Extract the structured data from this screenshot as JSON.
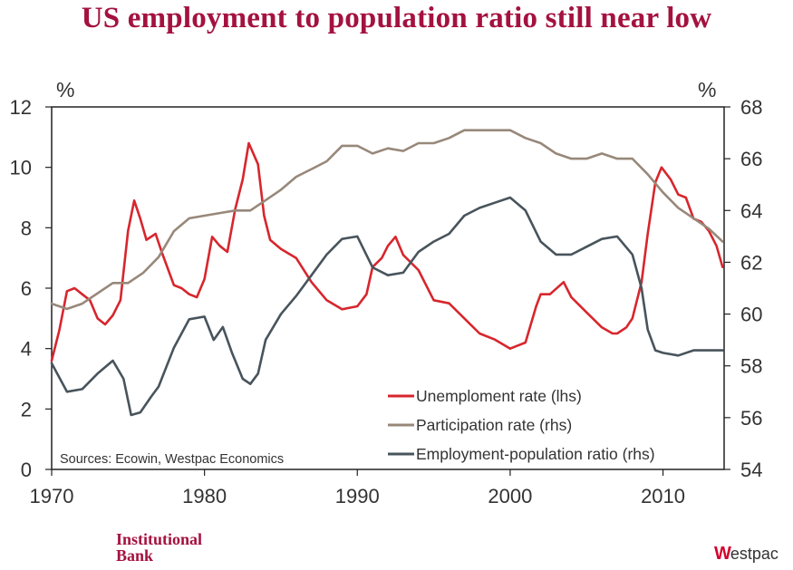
{
  "chart_data": {
    "type": "line",
    "title": "US employment to population ratio still near low",
    "left_unit": "%",
    "right_unit": "%",
    "x_range": [
      1970,
      2014
    ],
    "x_ticks": [
      1970,
      1980,
      1990,
      2000,
      2010
    ],
    "y_left_range": [
      0,
      12
    ],
    "y_left_ticks": [
      0,
      2,
      4,
      6,
      8,
      10,
      12
    ],
    "y_right_range": [
      54,
      68
    ],
    "y_right_ticks": [
      54,
      56,
      58,
      60,
      62,
      64,
      66,
      68
    ],
    "source_note": "Sources: Ecowin, Westpac Economics",
    "series": [
      {
        "name": "Unemploment rate (lhs)",
        "axis": "left",
        "color": "#d7262d",
        "points": [
          [
            1970.0,
            3.6
          ],
          [
            1970.5,
            4.6
          ],
          [
            1971.0,
            5.9
          ],
          [
            1971.5,
            6.0
          ],
          [
            1972.0,
            5.8
          ],
          [
            1972.5,
            5.6
          ],
          [
            1973.0,
            5.0
          ],
          [
            1973.5,
            4.8
          ],
          [
            1974.0,
            5.1
          ],
          [
            1974.5,
            5.6
          ],
          [
            1975.0,
            7.9
          ],
          [
            1975.4,
            8.9
          ],
          [
            1975.8,
            8.3
          ],
          [
            1976.2,
            7.6
          ],
          [
            1976.8,
            7.8
          ],
          [
            1977.2,
            7.2
          ],
          [
            1978.0,
            6.1
          ],
          [
            1978.5,
            6.0
          ],
          [
            1979.0,
            5.8
          ],
          [
            1979.5,
            5.7
          ],
          [
            1980.0,
            6.3
          ],
          [
            1980.5,
            7.7
          ],
          [
            1981.0,
            7.4
          ],
          [
            1981.5,
            7.2
          ],
          [
            1982.0,
            8.6
          ],
          [
            1982.5,
            9.6
          ],
          [
            1982.9,
            10.8
          ],
          [
            1983.5,
            10.1
          ],
          [
            1983.9,
            8.4
          ],
          [
            1984.3,
            7.6
          ],
          [
            1985.0,
            7.3
          ],
          [
            1986.0,
            7.0
          ],
          [
            1987.0,
            6.2
          ],
          [
            1988.0,
            5.6
          ],
          [
            1989.0,
            5.3
          ],
          [
            1990.0,
            5.4
          ],
          [
            1990.6,
            5.8
          ],
          [
            1991.0,
            6.7
          ],
          [
            1991.6,
            7.0
          ],
          [
            1992.0,
            7.4
          ],
          [
            1992.5,
            7.7
          ],
          [
            1993.0,
            7.1
          ],
          [
            1994.0,
            6.6
          ],
          [
            1995.0,
            5.6
          ],
          [
            1996.0,
            5.5
          ],
          [
            1997.0,
            5.0
          ],
          [
            1998.0,
            4.5
          ],
          [
            1999.0,
            4.3
          ],
          [
            2000.0,
            4.0
          ],
          [
            2001.0,
            4.2
          ],
          [
            2001.7,
            5.4
          ],
          [
            2002.0,
            5.8
          ],
          [
            2002.6,
            5.8
          ],
          [
            2003.5,
            6.2
          ],
          [
            2004.0,
            5.7
          ],
          [
            2005.0,
            5.2
          ],
          [
            2006.0,
            4.7
          ],
          [
            2006.7,
            4.5
          ],
          [
            2007.0,
            4.5
          ],
          [
            2007.6,
            4.7
          ],
          [
            2008.0,
            5.0
          ],
          [
            2008.6,
            6.2
          ],
          [
            2009.0,
            7.8
          ],
          [
            2009.5,
            9.5
          ],
          [
            2009.9,
            10.0
          ],
          [
            2010.5,
            9.6
          ],
          [
            2011.0,
            9.1
          ],
          [
            2011.5,
            9.0
          ],
          [
            2012.0,
            8.3
          ],
          [
            2012.5,
            8.2
          ],
          [
            2013.0,
            7.9
          ],
          [
            2013.5,
            7.4
          ],
          [
            2013.9,
            6.7
          ]
        ]
      },
      {
        "name": "Participation rate (rhs)",
        "axis": "right",
        "color": "#98887a",
        "points": [
          [
            1970.0,
            60.4
          ],
          [
            1971.0,
            60.2
          ],
          [
            1972.0,
            60.4
          ],
          [
            1973.0,
            60.8
          ],
          [
            1974.0,
            61.2
          ],
          [
            1975.0,
            61.2
          ],
          [
            1976.0,
            61.6
          ],
          [
            1977.0,
            62.2
          ],
          [
            1978.0,
            63.2
          ],
          [
            1979.0,
            63.7
          ],
          [
            1980.0,
            63.8
          ],
          [
            1981.0,
            63.9
          ],
          [
            1982.0,
            64.0
          ],
          [
            1983.0,
            64.0
          ],
          [
            1984.0,
            64.4
          ],
          [
            1985.0,
            64.8
          ],
          [
            1986.0,
            65.3
          ],
          [
            1987.0,
            65.6
          ],
          [
            1988.0,
            65.9
          ],
          [
            1989.0,
            66.5
          ],
          [
            1990.0,
            66.5
          ],
          [
            1991.0,
            66.2
          ],
          [
            1992.0,
            66.4
          ],
          [
            1993.0,
            66.3
          ],
          [
            1994.0,
            66.6
          ],
          [
            1995.0,
            66.6
          ],
          [
            1996.0,
            66.8
          ],
          [
            1997.0,
            67.1
          ],
          [
            1998.0,
            67.1
          ],
          [
            1999.0,
            67.1
          ],
          [
            2000.0,
            67.1
          ],
          [
            2001.0,
            66.8
          ],
          [
            2002.0,
            66.6
          ],
          [
            2003.0,
            66.2
          ],
          [
            2004.0,
            66.0
          ],
          [
            2005.0,
            66.0
          ],
          [
            2006.0,
            66.2
          ],
          [
            2007.0,
            66.0
          ],
          [
            2008.0,
            66.0
          ],
          [
            2009.0,
            65.4
          ],
          [
            2010.0,
            64.7
          ],
          [
            2011.0,
            64.1
          ],
          [
            2012.0,
            63.7
          ],
          [
            2013.0,
            63.3
          ],
          [
            2013.9,
            62.8
          ]
        ]
      },
      {
        "name": "Employment-population ratio (rhs)",
        "axis": "right",
        "color": "#48545c",
        "points": [
          [
            1970.0,
            58.1
          ],
          [
            1971.0,
            57.0
          ],
          [
            1972.0,
            57.1
          ],
          [
            1973.0,
            57.7
          ],
          [
            1974.0,
            58.2
          ],
          [
            1974.7,
            57.5
          ],
          [
            1975.2,
            56.1
          ],
          [
            1975.8,
            56.2
          ],
          [
            1976.5,
            56.8
          ],
          [
            1977.0,
            57.2
          ],
          [
            1978.0,
            58.7
          ],
          [
            1979.0,
            59.8
          ],
          [
            1980.0,
            59.9
          ],
          [
            1980.6,
            59.0
          ],
          [
            1981.2,
            59.5
          ],
          [
            1981.8,
            58.5
          ],
          [
            1982.5,
            57.5
          ],
          [
            1983.0,
            57.3
          ],
          [
            1983.5,
            57.7
          ],
          [
            1984.0,
            59.0
          ],
          [
            1985.0,
            60.0
          ],
          [
            1986.0,
            60.7
          ],
          [
            1987.0,
            61.5
          ],
          [
            1988.0,
            62.3
          ],
          [
            1989.0,
            62.9
          ],
          [
            1990.0,
            63.0
          ],
          [
            1991.0,
            61.8
          ],
          [
            1992.0,
            61.5
          ],
          [
            1993.0,
            61.6
          ],
          [
            1994.0,
            62.4
          ],
          [
            1995.0,
            62.8
          ],
          [
            1996.0,
            63.1
          ],
          [
            1997.0,
            63.8
          ],
          [
            1998.0,
            64.1
          ],
          [
            1999.0,
            64.3
          ],
          [
            2000.0,
            64.5
          ],
          [
            2001.0,
            64.0
          ],
          [
            2002.0,
            62.8
          ],
          [
            2003.0,
            62.3
          ],
          [
            2004.0,
            62.3
          ],
          [
            2005.0,
            62.6
          ],
          [
            2006.0,
            62.9
          ],
          [
            2007.0,
            63.0
          ],
          [
            2008.0,
            62.3
          ],
          [
            2008.6,
            61.0
          ],
          [
            2009.0,
            59.4
          ],
          [
            2009.5,
            58.6
          ],
          [
            2010.0,
            58.5
          ],
          [
            2011.0,
            58.4
          ],
          [
            2012.0,
            58.6
          ],
          [
            2013.0,
            58.6
          ],
          [
            2013.9,
            58.6
          ]
        ]
      }
    ]
  },
  "branding": {
    "left_logo_line1": "Institutional",
    "left_logo_line2": "Bank",
    "right_logo_mark": "W",
    "right_logo_text": "estpac"
  }
}
